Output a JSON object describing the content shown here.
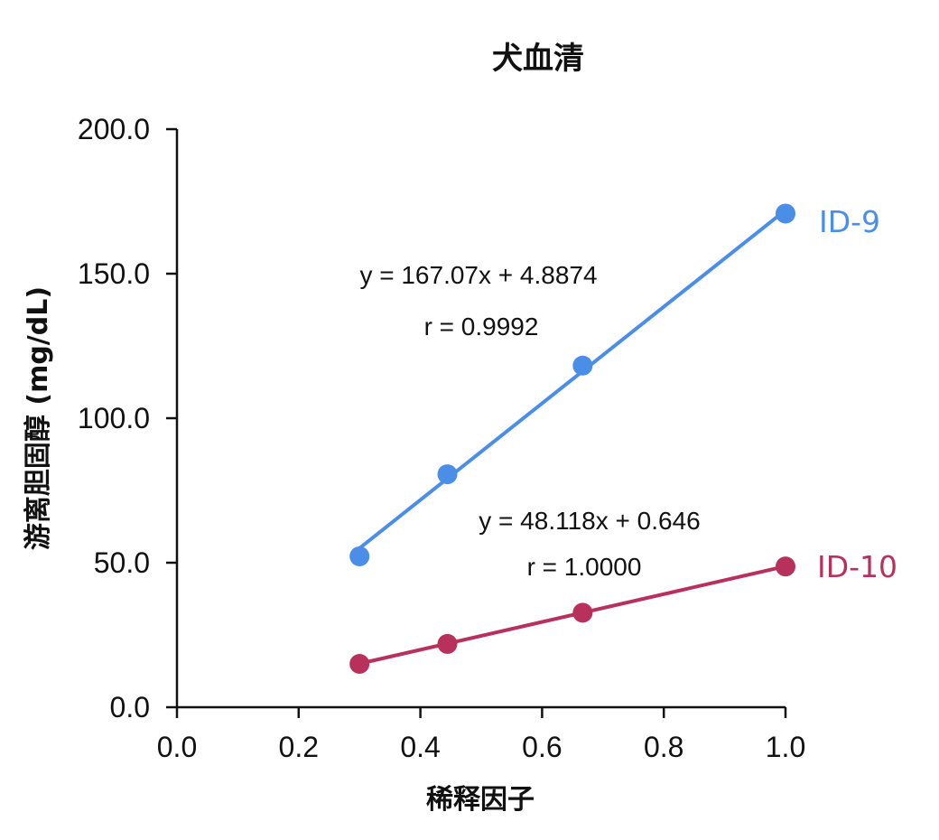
{
  "chart_data": {
    "type": "scatter",
    "title": "犬血清",
    "xlabel": "稀释因子",
    "ylabel": "游离胆固醇 (mg/dL)",
    "xlim": [
      0,
      1.0
    ],
    "ylim": [
      0,
      200
    ],
    "x_ticks": [
      "0.0",
      "0.2",
      "0.4",
      "0.6",
      "0.8",
      "1.0"
    ],
    "y_ticks": [
      "0.0",
      "50.0",
      "100.0",
      "150.0",
      "200.0"
    ],
    "grid": false,
    "legend": "inline labels at line ends",
    "series": [
      {
        "name": "ID-9",
        "color": "#4A8EE8",
        "x": [
          0.3,
          0.4444,
          0.6667,
          1.0
        ],
        "y": [
          52.2,
          80.6,
          118.2,
          170.8
        ],
        "trendline": {
          "slope": 167.07,
          "intercept": 4.8874
        },
        "equation": "y = 167.07x + 4.8874",
        "r_text": "r = 0.9992"
      },
      {
        "name": "ID-10",
        "color": "#B8305C",
        "x": [
          0.3,
          0.4444,
          0.6667,
          1.0
        ],
        "y": [
          15.0,
          21.9,
          32.7,
          48.7
        ],
        "trendline": {
          "slope": 48.118,
          "intercept": 0.646
        },
        "equation": "y = 48.118x + 0.646",
        "r_text": "r = 1.0000"
      }
    ]
  }
}
